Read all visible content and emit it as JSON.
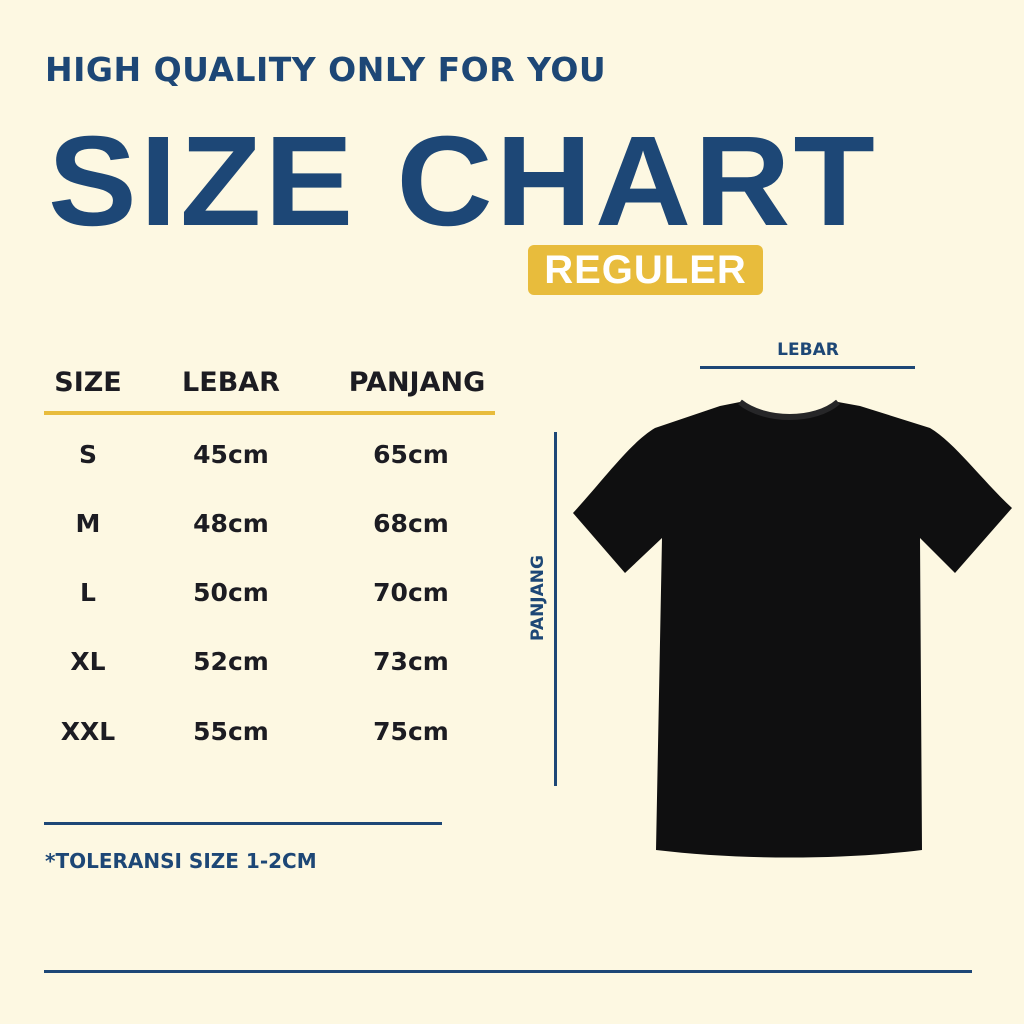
{
  "tagline": "HIGH QUALITY ONLY FOR YOU",
  "title": "SIZE CHART",
  "badge": "REGULER",
  "colors": {
    "background": "#fdf8e2",
    "primary": "#1d4776",
    "accent": "#e8bc3c",
    "shirt": "#0f0f10"
  },
  "table": {
    "headers": [
      "SIZE",
      "LEBAR",
      "PANJANG"
    ],
    "rows": [
      [
        "S",
        "45cm",
        "65cm"
      ],
      [
        "M",
        "48cm",
        "68cm"
      ],
      [
        "L",
        "50cm",
        "70cm"
      ],
      [
        "XL",
        "52cm",
        "73cm"
      ],
      [
        "XXL",
        "55cm",
        "75cm"
      ]
    ]
  },
  "note": "*TOLERANSI SIZE 1-2CM",
  "diagram": {
    "width_label": "LEBAR",
    "length_label": "PANJANG",
    "image": "black-tshirt-icon"
  }
}
